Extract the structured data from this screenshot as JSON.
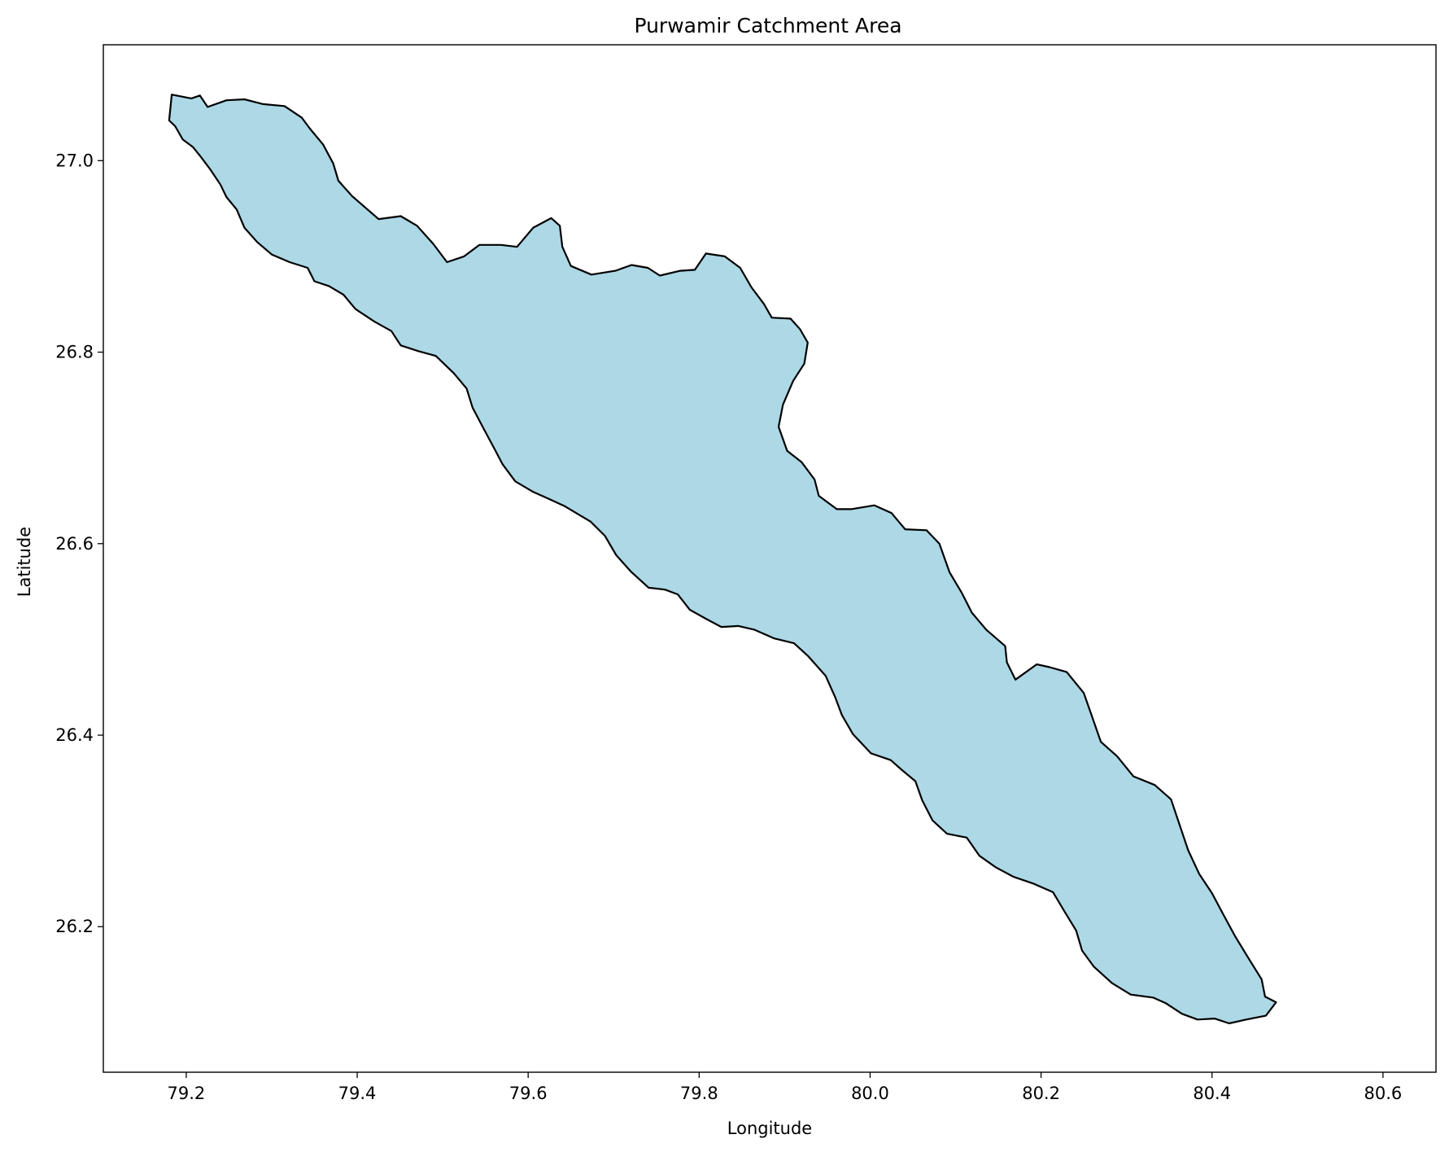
{
  "chart_data": {
    "type": "map",
    "title": "Purwamir Catchment Area",
    "xlabel": "Longitude",
    "ylabel": "Latitude",
    "xlim": [
      79.103,
      80.662
    ],
    "ylim": [
      26.048,
      27.121
    ],
    "xticks": [
      79.2,
      79.4,
      79.6,
      79.8,
      80.0,
      80.2,
      80.4,
      80.6
    ],
    "xtick_labels": [
      "79.2",
      "79.4",
      "79.6",
      "79.8",
      "80.0",
      "80.2",
      "80.4",
      "80.6"
    ],
    "yticks": [
      26.2,
      26.4,
      26.6,
      26.8,
      27.0
    ],
    "ytick_labels": [
      "26.2",
      "26.4",
      "26.6",
      "26.8",
      "27.0"
    ],
    "grid": false,
    "fill_color": "#add8e6",
    "edge_color": "#000000",
    "boundary": [
      [
        79.183,
        27.069
      ],
      [
        79.206,
        27.065
      ],
      [
        79.216,
        27.068
      ],
      [
        79.225,
        27.056
      ],
      [
        79.247,
        27.063
      ],
      [
        79.268,
        27.064
      ],
      [
        79.29,
        27.059
      ],
      [
        79.315,
        27.057
      ],
      [
        79.335,
        27.045
      ],
      [
        79.345,
        27.033
      ],
      [
        79.36,
        27.017
      ],
      [
        79.372,
        26.997
      ],
      [
        79.378,
        26.979
      ],
      [
        79.394,
        26.963
      ],
      [
        79.425,
        26.939
      ],
      [
        79.451,
        26.942
      ],
      [
        79.47,
        26.932
      ],
      [
        79.489,
        26.913
      ],
      [
        79.505,
        26.894
      ],
      [
        79.525,
        26.9
      ],
      [
        79.543,
        26.912
      ],
      [
        79.568,
        26.912
      ],
      [
        79.587,
        26.91
      ],
      [
        79.606,
        26.93
      ],
      [
        79.627,
        26.94
      ],
      [
        79.637,
        26.932
      ],
      [
        79.64,
        26.91
      ],
      [
        79.65,
        26.89
      ],
      [
        79.674,
        26.881
      ],
      [
        79.702,
        26.885
      ],
      [
        79.721,
        26.891
      ],
      [
        79.74,
        26.888
      ],
      [
        79.754,
        26.88
      ],
      [
        79.778,
        26.885
      ],
      [
        79.795,
        26.886
      ],
      [
        79.808,
        26.903
      ],
      [
        79.83,
        26.9
      ],
      [
        79.848,
        26.888
      ],
      [
        79.861,
        26.868
      ],
      [
        79.876,
        26.85
      ],
      [
        79.885,
        26.836
      ],
      [
        79.907,
        26.835
      ],
      [
        79.918,
        26.824
      ],
      [
        79.927,
        26.81
      ],
      [
        79.923,
        26.788
      ],
      [
        79.91,
        26.77
      ],
      [
        79.898,
        26.745
      ],
      [
        79.893,
        26.722
      ],
      [
        79.903,
        26.697
      ],
      [
        79.92,
        26.685
      ],
      [
        79.935,
        26.667
      ],
      [
        79.94,
        26.65
      ],
      [
        79.961,
        26.636
      ],
      [
        79.978,
        26.636
      ],
      [
        80.005,
        26.64
      ],
      [
        80.025,
        26.632
      ],
      [
        80.041,
        26.615
      ],
      [
        80.066,
        26.614
      ],
      [
        80.081,
        26.6
      ],
      [
        80.093,
        26.57
      ],
      [
        80.107,
        26.549
      ],
      [
        80.119,
        26.528
      ],
      [
        80.136,
        26.51
      ],
      [
        80.158,
        26.493
      ],
      [
        80.16,
        26.476
      ],
      [
        80.17,
        26.458
      ],
      [
        80.195,
        26.474
      ],
      [
        80.21,
        26.471
      ],
      [
        80.23,
        26.466
      ],
      [
        80.25,
        26.444
      ],
      [
        80.259,
        26.421
      ],
      [
        80.27,
        26.393
      ],
      [
        80.289,
        26.378
      ],
      [
        80.308,
        26.357
      ],
      [
        80.333,
        26.348
      ],
      [
        80.352,
        26.333
      ],
      [
        80.363,
        26.304
      ],
      [
        80.372,
        26.28
      ],
      [
        80.385,
        26.255
      ],
      [
        80.4,
        26.235
      ],
      [
        80.413,
        26.213
      ],
      [
        80.427,
        26.19
      ],
      [
        80.442,
        26.168
      ],
      [
        80.458,
        26.145
      ],
      [
        80.462,
        26.127
      ],
      [
        80.475,
        26.121
      ],
      [
        80.463,
        26.107
      ],
      [
        80.44,
        26.103
      ],
      [
        80.42,
        26.099
      ],
      [
        80.403,
        26.104
      ],
      [
        80.383,
        26.103
      ],
      [
        80.365,
        26.109
      ],
      [
        80.346,
        26.12
      ],
      [
        80.331,
        26.126
      ],
      [
        80.305,
        26.129
      ],
      [
        80.283,
        26.141
      ],
      [
        80.262,
        26.158
      ],
      [
        80.248,
        26.175
      ],
      [
        80.241,
        26.196
      ],
      [
        80.228,
        26.215
      ],
      [
        80.214,
        26.236
      ],
      [
        80.191,
        26.245
      ],
      [
        80.168,
        26.252
      ],
      [
        80.147,
        26.262
      ],
      [
        80.128,
        26.274
      ],
      [
        80.113,
        26.293
      ],
      [
        80.09,
        26.297
      ],
      [
        80.073,
        26.311
      ],
      [
        80.061,
        26.332
      ],
      [
        80.053,
        26.352
      ],
      [
        80.038,
        26.363
      ],
      [
        80.024,
        26.374
      ],
      [
        80.001,
        26.381
      ],
      [
        79.98,
        26.401
      ],
      [
        79.967,
        26.421
      ],
      [
        79.959,
        26.44
      ],
      [
        79.948,
        26.462
      ],
      [
        79.927,
        26.483
      ],
      [
        79.911,
        26.496
      ],
      [
        79.888,
        26.501
      ],
      [
        79.865,
        26.51
      ],
      [
        79.846,
        26.514
      ],
      [
        79.826,
        26.513
      ],
      [
        79.807,
        26.522
      ],
      [
        79.789,
        26.531
      ],
      [
        79.775,
        26.547
      ],
      [
        79.76,
        26.552
      ],
      [
        79.741,
        26.554
      ],
      [
        79.72,
        26.571
      ],
      [
        79.703,
        26.588
      ],
      [
        79.69,
        26.608
      ],
      [
        79.673,
        26.623
      ],
      [
        79.658,
        26.631
      ],
      [
        79.643,
        26.639
      ],
      [
        79.621,
        26.648
      ],
      [
        79.606,
        26.654
      ],
      [
        79.585,
        26.665
      ],
      [
        79.57,
        26.683
      ],
      [
        79.56,
        26.7
      ],
      [
        79.548,
        26.72
      ],
      [
        79.535,
        26.742
      ],
      [
        79.528,
        26.762
      ],
      [
        79.513,
        26.778
      ],
      [
        79.492,
        26.796
      ],
      [
        79.472,
        26.801
      ],
      [
        79.451,
        26.807
      ],
      [
        79.44,
        26.822
      ],
      [
        79.42,
        26.832
      ],
      [
        79.398,
        26.845
      ],
      [
        79.384,
        26.86
      ],
      [
        79.367,
        26.869
      ],
      [
        79.35,
        26.874
      ],
      [
        79.342,
        26.888
      ],
      [
        79.321,
        26.894
      ],
      [
        79.3,
        26.902
      ],
      [
        79.283,
        26.915
      ],
      [
        79.268,
        26.93
      ],
      [
        79.259,
        26.949
      ],
      [
        79.247,
        26.962
      ],
      [
        79.24,
        26.975
      ],
      [
        79.228,
        26.991
      ],
      [
        79.217,
        27.004
      ],
      [
        79.208,
        27.014
      ],
      [
        79.196,
        27.022
      ],
      [
        79.187,
        27.036
      ],
      [
        79.18,
        27.042
      ],
      [
        79.183,
        27.069
      ]
    ]
  }
}
